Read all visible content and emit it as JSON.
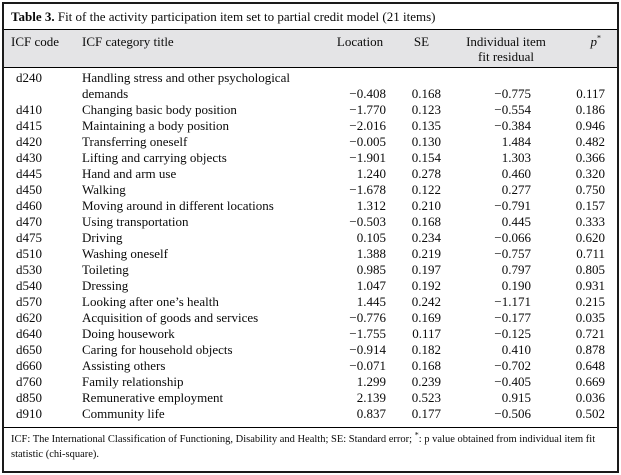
{
  "table": {
    "title_label": "Table 3.",
    "title_text": " Fit of the activity participation item set to partial credit model (21 items)",
    "columns": {
      "code": "ICF code",
      "title": "ICF category title",
      "location": "Location",
      "se": "SE",
      "fit": "Individual item fit residual",
      "p_letter": "p",
      "p_sup": "*"
    },
    "rows": [
      {
        "code": "d240",
        "title": "Handling stress and other psychological demands",
        "location": "−0.408",
        "se": "0.168",
        "fit": "−0.775",
        "p": "0.117"
      },
      {
        "code": "d410",
        "title": "Changing basic body position",
        "location": "−1.770",
        "se": "0.123",
        "fit": "−0.554",
        "p": "0.186"
      },
      {
        "code": "d415",
        "title": "Maintaining a body position",
        "location": "−2.016",
        "se": "0.135",
        "fit": "−0.384",
        "p": "0.946"
      },
      {
        "code": "d420",
        "title": "Transferring oneself",
        "location": "−0.005",
        "se": "0.130",
        "fit": "1.484",
        "p": "0.482"
      },
      {
        "code": "d430",
        "title": "Lifting and carrying objects",
        "location": "−1.901",
        "se": "0.154",
        "fit": "1.303",
        "p": "0.366"
      },
      {
        "code": "d445",
        "title": "Hand and arm use",
        "location": "1.240",
        "se": "0.278",
        "fit": "0.460",
        "p": "0.320"
      },
      {
        "code": "d450",
        "title": "Walking",
        "location": "−1.678",
        "se": "0.122",
        "fit": "0.277",
        "p": "0.750"
      },
      {
        "code": "d460",
        "title": "Moving around in different locations",
        "location": "1.312",
        "se": "0.210",
        "fit": "−0.791",
        "p": "0.157"
      },
      {
        "code": "d470",
        "title": "Using transportation",
        "location": "−0.503",
        "se": "0.168",
        "fit": "0.445",
        "p": "0.333"
      },
      {
        "code": "d475",
        "title": "Driving",
        "location": "0.105",
        "se": "0.234",
        "fit": "−0.066",
        "p": "0.620"
      },
      {
        "code": "d510",
        "title": "Washing oneself",
        "location": "1.388",
        "se": "0.219",
        "fit": "−0.757",
        "p": "0.711"
      },
      {
        "code": "d530",
        "title": "Toileting",
        "location": "0.985",
        "se": "0.197",
        "fit": "0.797",
        "p": "0.805"
      },
      {
        "code": "d540",
        "title": "Dressing",
        "location": "1.047",
        "se": "0.192",
        "fit": "0.190",
        "p": "0.931"
      },
      {
        "code": "d570",
        "title": "Looking after one’s health",
        "location": "1.445",
        "se": "0.242",
        "fit": "−1.171",
        "p": "0.215"
      },
      {
        "code": "d620",
        "title": "Acquisition of goods and services",
        "location": "−0.776",
        "se": "0.169",
        "fit": "−0.177",
        "p": "0.035"
      },
      {
        "code": "d640",
        "title": "Doing housework",
        "location": "−1.755",
        "se": "0.117",
        "fit": "−0.125",
        "p": "0.721"
      },
      {
        "code": "d650",
        "title": "Caring for household objects",
        "location": "−0.914",
        "se": "0.182",
        "fit": "0.410",
        "p": "0.878"
      },
      {
        "code": "d660",
        "title": "Assisting others",
        "location": "−0.071",
        "se": "0.168",
        "fit": "−0.702",
        "p": "0.648"
      },
      {
        "code": "d760",
        "title": "Family relationship",
        "location": "1.299",
        "se": "0.239",
        "fit": "−0.405",
        "p": "0.669"
      },
      {
        "code": "d850",
        "title": "Remunerative employment",
        "location": "2.139",
        "se": "0.523",
        "fit": "0.915",
        "p": "0.036"
      },
      {
        "code": "d910",
        "title": "Community life",
        "location": "0.837",
        "se": "0.177",
        "fit": "−0.506",
        "p": "0.502"
      }
    ],
    "footnote_part1": "ICF: The International Classification of Functioning, Disability and Health; SE: Standard error; ",
    "footnote_sup": "*",
    "footnote_part2": ": p value obtained from individual item fit statistic (chi-square)."
  }
}
